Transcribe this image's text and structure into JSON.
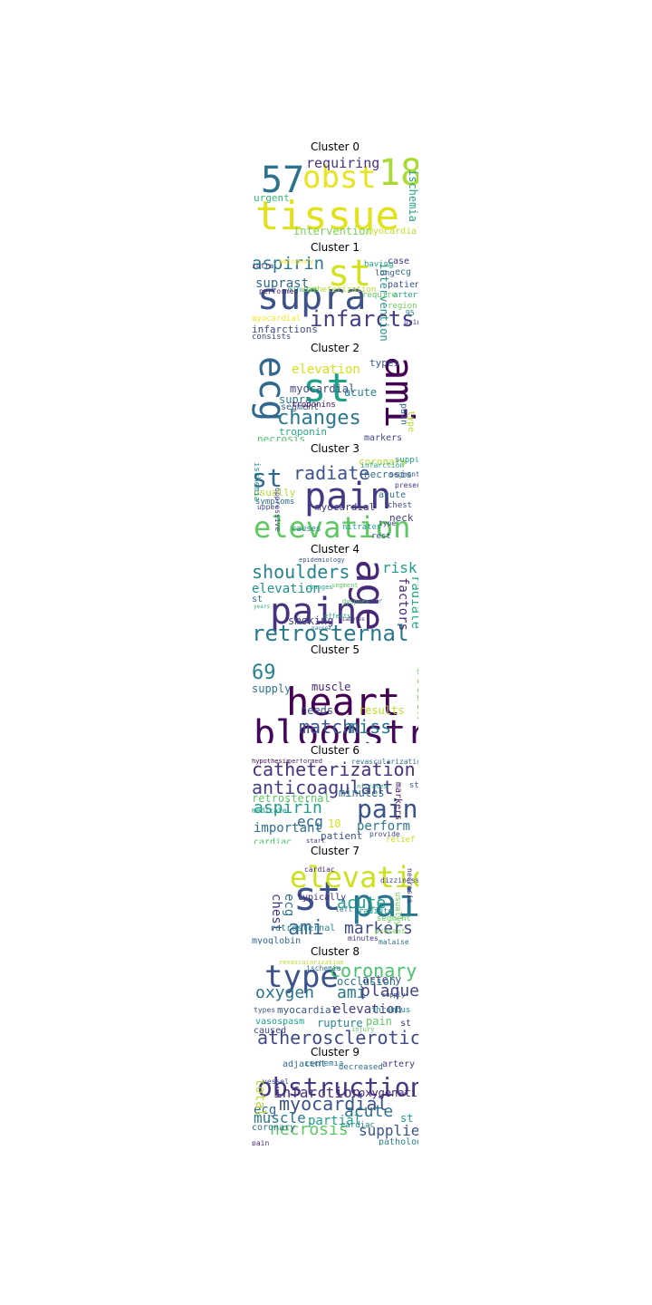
{
  "figure": {
    "caption": ""
  },
  "clusters": [
    {
      "title": "Cluster 0",
      "words": [
        "tissue",
        "obst",
        "57",
        "18",
        "requiring",
        "ischemia",
        "urgent",
        "intervention",
        "myocardial"
      ]
    },
    {
      "title": "Cluster 1",
      "words": [
        "supra",
        "st",
        "infarcts",
        "aspirin",
        "suprast",
        "intervention",
        "infarctions",
        "consists",
        "case",
        "ecg",
        "having",
        "long",
        "patient",
        "artery",
        "region",
        "95",
        "using",
        "require",
        "catheterization",
        "minutes",
        "myocardial",
        "infra",
        "emergency",
        "performed"
      ]
    },
    {
      "title": "Cluster 2",
      "words": [
        "st",
        "ami",
        "ecg",
        "changes",
        "elevation",
        "myocardial",
        "supra",
        "segment",
        "acute",
        "types",
        "troponins",
        "necrosis",
        "troponin",
        "markers",
        "type",
        "pain"
      ]
    },
    {
      "title": "Cluster 3",
      "words": [
        "pain",
        "elevation",
        "st",
        "radiate",
        "myocardial",
        "necrosis",
        "usually",
        "symptoms",
        "acute",
        "chest",
        "neck",
        "coronary",
        "supply",
        "nitrates",
        "causes",
        "type",
        "rest",
        "infarction",
        "segment",
        "present",
        "ischemia",
        "upper",
        "oppressive"
      ]
    },
    {
      "title": "Cluster 4",
      "words": [
        "pain",
        "age",
        "shoulders",
        "retrosternal",
        "elevation",
        "risk",
        "factors",
        "radiate",
        "smoking",
        "st",
        "epidemiology",
        "segment",
        "dyspnea",
        "nausea",
        "diabetes",
        "effects",
        "years",
        "upper",
        "changes"
      ]
    },
    {
      "title": "Cluster 5",
      "words": [
        "heart",
        "bloodstream",
        "69",
        "match",
        "miss",
        "attack",
        "muscle",
        "supply",
        "needs",
        "results"
      ]
    },
    {
      "title": "Cluster 6",
      "words": [
        "catheterization",
        "anticoagulant",
        "pain",
        "aspirin",
        "ecg",
        "perform",
        "important",
        "minutes",
        "retrosternal",
        "markers",
        "10",
        "cardiac",
        "patient",
        "relief",
        "hypothesis",
        "performed",
        "revascularization",
        "provide",
        "st",
        "start",
        "medicate",
        "nitrates"
      ]
    },
    {
      "title": "Cluster 7",
      "words": [
        "st",
        "pain",
        "elevation",
        "ami",
        "markers",
        "acute",
        "chest",
        "ecg",
        "typically",
        "retrosternal",
        "myoglobin",
        "cardiac",
        "left",
        "radiate",
        "segment",
        "minutes",
        "usually",
        "present",
        "malaise",
        "dizziness",
        "necrosis"
      ]
    },
    {
      "title": "Cluster 8",
      "words": [
        "type",
        "coronary",
        "atherosclerotic",
        "oxygen",
        "ami",
        "plaque",
        "occlusion",
        "artery",
        "elevation",
        "myocardial",
        "rupture",
        "vasospasm",
        "pain",
        "caused",
        "types",
        "ischemia",
        "revascularization",
        "st",
        "thrombus",
        "supply",
        "injury"
      ]
    },
    {
      "title": "Cluster 9",
      "words": [
        "obstruction",
        "myocardial",
        "infarction",
        "acute",
        "necrosis",
        "supplies",
        "muscle",
        "ecg",
        "partial",
        "oxygenation",
        "adjacent",
        "ischemia",
        "artery",
        "total",
        "coronary",
        "pathology",
        "st",
        "cardiac",
        "pain",
        "decreased",
        "vessel"
      ]
    }
  ]
}
